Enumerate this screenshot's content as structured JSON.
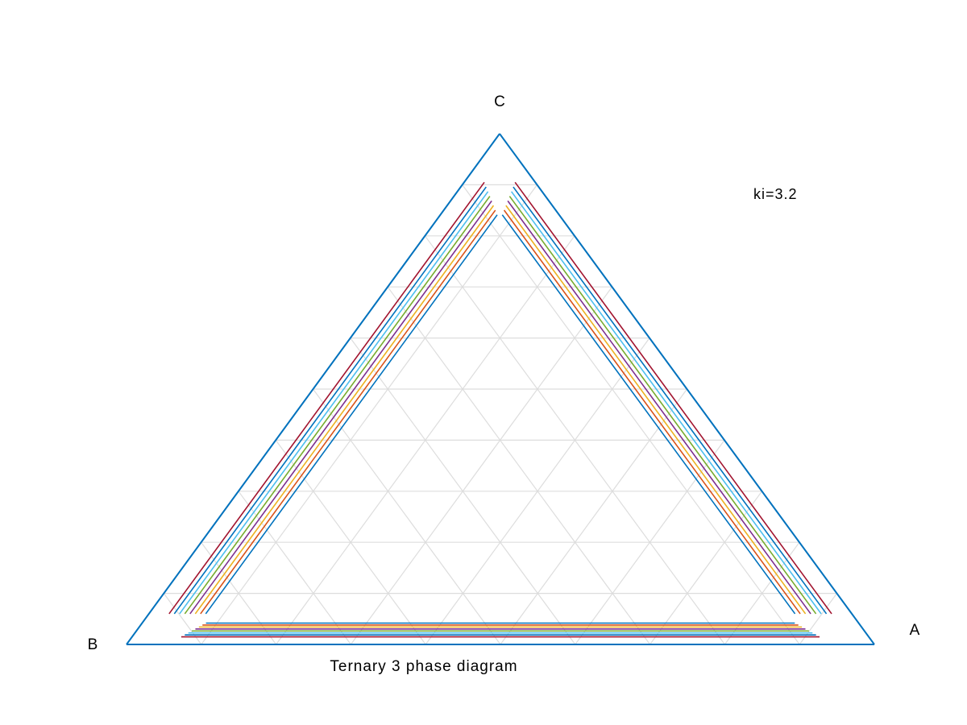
{
  "chart_data": {
    "type": "ternary",
    "title": "Ternary 3 phase diagram",
    "annotation": "ki=3.2",
    "vertex_labels": {
      "a": "A",
      "b": "B",
      "c": "C"
    },
    "grid": true,
    "grid_divisions": 10,
    "frame_color": "#0072BD",
    "grid_color": "#dddddd",
    "series": [
      {
        "color": "#0072BD",
        "offset": 0.0
      },
      {
        "color": "#A2142F",
        "offset": 0.027
      },
      {
        "color": "#0072BD",
        "offset": 0.034
      },
      {
        "color": "#4DBEEE",
        "offset": 0.041
      },
      {
        "color": "#77AC30",
        "offset": 0.048
      },
      {
        "color": "#7E2F8E",
        "offset": 0.055
      },
      {
        "color": "#EDB120",
        "offset": 0.062
      },
      {
        "color": "#D95319",
        "offset": 0.069
      },
      {
        "color": "#0072BD",
        "offset": 0.076
      }
    ]
  }
}
